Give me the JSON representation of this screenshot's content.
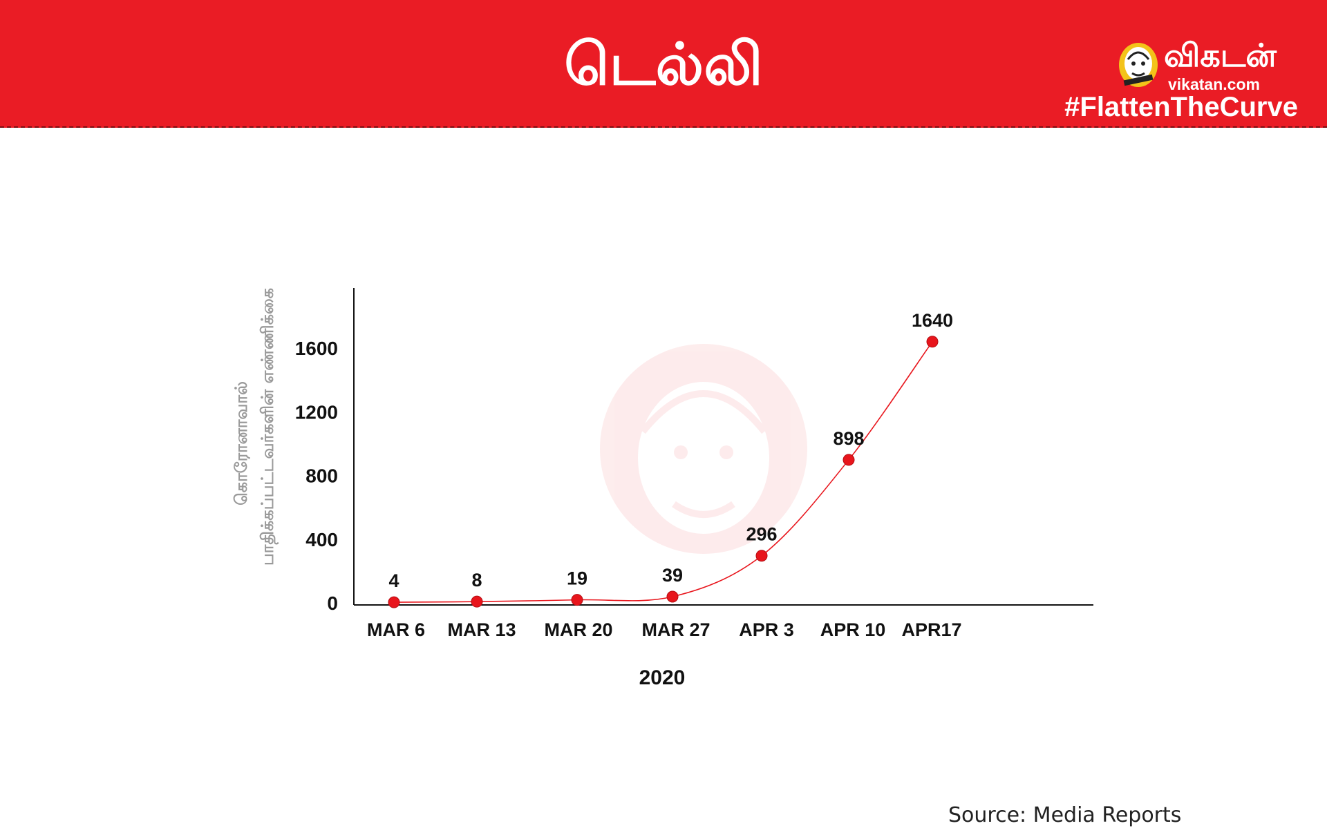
{
  "header": {
    "title": "டெல்லி",
    "brand_name": "விகடன்",
    "brand_domain": "vikatan.com",
    "hashtag": "#FlattenTheCurve",
    "background_color": "#ea1c25"
  },
  "icons": {
    "brand_logo": "vikatan-mascot-logo",
    "watermark": "vikatan-mascot-watermark"
  },
  "chart_data": {
    "type": "line",
    "title": "",
    "xlabel": "2020",
    "ylabel_lines": [
      "கொரோனாவால்",
      "பாதிக்கப்பட்டவர்களின் எண்ணிக்கை"
    ],
    "categories": [
      "MAR 6",
      "MAR 13",
      "MAR 20",
      "MAR 27",
      "APR 3",
      "APR 10",
      "APR17"
    ],
    "values": [
      4,
      8,
      19,
      39,
      296,
      898,
      1640
    ],
    "data_labels": [
      "4",
      "8",
      "19",
      "39",
      "296",
      "898",
      "1640"
    ],
    "y_ticks": [
      "0",
      "400",
      "800",
      "1200",
      "1600"
    ],
    "ylim": [
      0,
      2000
    ],
    "grid": false,
    "legend": "none",
    "line_color": "#e8151c",
    "marker_color": "#e8151c",
    "curve": "smooth"
  },
  "footer": {
    "source": "Source: Media Reports"
  }
}
